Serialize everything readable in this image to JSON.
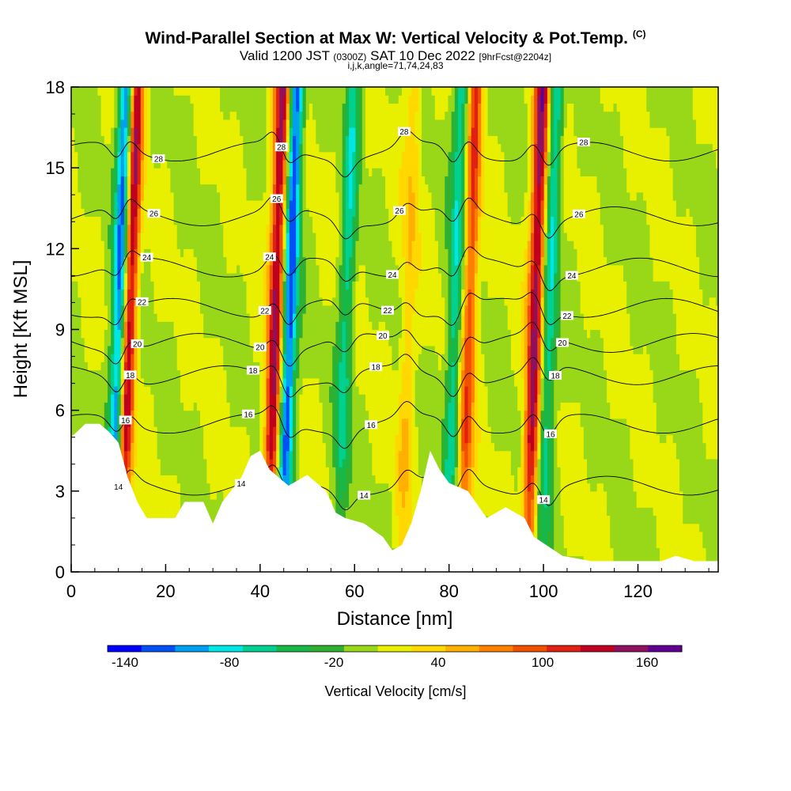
{
  "header": {
    "title": "Wind-Parallel Section at Max W: Vertical Velocity & Pot.Temp.",
    "copyright": "(C)",
    "valid_prefix": "Valid 1200 JST",
    "valid_zulu": "(0300Z)",
    "valid_date": "SAT 10 Dec 2022",
    "forecast": "[9hrFcst@2204z]",
    "indices": "i,j,k,angle=71,74,24,83"
  },
  "chart_data": {
    "type": "heatmap",
    "title": "Wind-Parallel Section at Max W: Vertical Velocity & Pot.Temp.",
    "xlabel": "Distance [nm]",
    "ylabel": "Height [Kft MSL]",
    "xlim": [
      0,
      137
    ],
    "ylim": [
      0,
      18
    ],
    "x_ticks": [
      0,
      20,
      40,
      60,
      80,
      100,
      120
    ],
    "y_ticks": [
      0,
      3,
      6,
      9,
      12,
      15,
      18
    ],
    "grid": false,
    "colorbar": {
      "title": "Vertical Velocity [cm/s]",
      "min": -150,
      "max": 180,
      "step": 20,
      "tick_values": [
        -140,
        -80,
        -20,
        40,
        100,
        160
      ],
      "colors": [
        "#0000ff",
        "#0050f5",
        "#00a0f0",
        "#00e6e6",
        "#00d090",
        "#18b848",
        "#30b030",
        "#98d818",
        "#e8f000",
        "#ffd800",
        "#ffb000",
        "#ff8000",
        "#f05000",
        "#e02010",
        "#c00020",
        "#901060",
        "#600090"
      ],
      "placement": "bottom"
    },
    "vertical_velocity_bands": [
      {
        "x": 10,
        "peak": "down",
        "min": -140
      },
      {
        "x": 12,
        "peak": "up",
        "max": 150
      },
      {
        "x": 43,
        "peak": "up",
        "max": 150
      },
      {
        "x": 46,
        "peak": "down",
        "min": -140
      },
      {
        "x": 58,
        "peak": "down",
        "min": -70
      },
      {
        "x": 71,
        "peak": "up",
        "max": 40
      },
      {
        "x": 81,
        "peak": "down",
        "min": -80
      },
      {
        "x": 84,
        "peak": "up",
        "max": 100
      },
      {
        "x": 98,
        "peak": "up",
        "max": 150
      },
      {
        "x": 101,
        "peak": "down",
        "min": -80
      }
    ],
    "terrain_top_kft": [
      [
        0,
        5.0
      ],
      [
        3,
        5.5
      ],
      [
        6,
        5.5
      ],
      [
        8,
        5.2
      ],
      [
        10,
        4.8
      ],
      [
        12,
        3.5
      ],
      [
        14,
        2.6
      ],
      [
        16,
        2.0
      ],
      [
        22,
        2.0
      ],
      [
        24,
        2.6
      ],
      [
        28,
        2.6
      ],
      [
        30,
        1.8
      ],
      [
        32,
        2.6
      ],
      [
        36,
        3.5
      ],
      [
        38,
        4.3
      ],
      [
        40,
        4.5
      ],
      [
        42,
        3.8
      ],
      [
        44,
        3.5
      ],
      [
        46,
        3.2
      ],
      [
        50,
        3.6
      ],
      [
        54,
        3.0
      ],
      [
        56,
        2.2
      ],
      [
        58,
        2.0
      ],
      [
        62,
        1.8
      ],
      [
        66,
        1.3
      ],
      [
        68,
        0.8
      ],
      [
        70,
        1.0
      ],
      [
        72,
        1.8
      ],
      [
        74,
        3.0
      ],
      [
        76,
        4.5
      ],
      [
        78,
        3.8
      ],
      [
        80,
        3.3
      ],
      [
        84,
        3.0
      ],
      [
        86,
        2.5
      ],
      [
        88,
        2.0
      ],
      [
        92,
        2.4
      ],
      [
        96,
        2.0
      ],
      [
        98,
        1.3
      ],
      [
        104,
        0.6
      ],
      [
        110,
        0.4
      ],
      [
        125,
        0.4
      ],
      [
        128,
        0.6
      ],
      [
        132,
        0.4
      ],
      [
        137,
        0.4
      ]
    ],
    "contours": [
      {
        "label": "14",
        "base": 3.2
      },
      {
        "label": "16",
        "base": 5.5
      },
      {
        "label": "18",
        "base": 7.3
      },
      {
        "label": "20",
        "base": 8.5
      },
      {
        "label": "22",
        "base": 9.8
      },
      {
        "label": "24",
        "base": 11.3
      },
      {
        "label": "26",
        "base": 13.2
      },
      {
        "label": "28",
        "base": 15.6
      }
    ]
  }
}
